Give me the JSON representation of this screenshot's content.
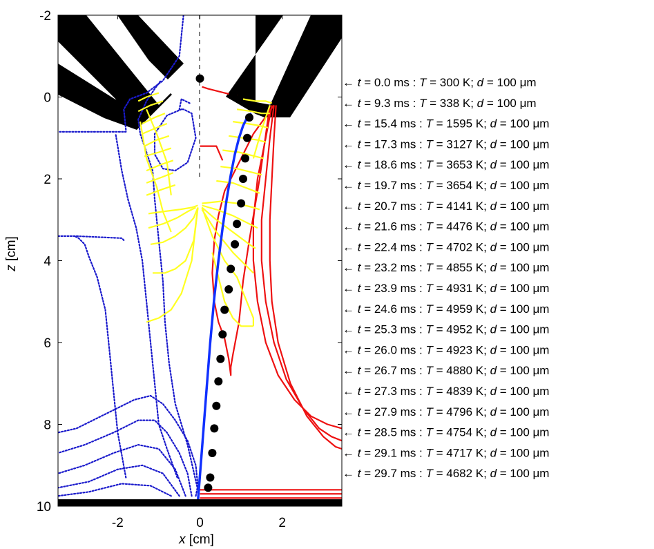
{
  "chart_data": {
    "type": "line",
    "title": "",
    "xlabel": {
      "var": "x",
      "unit": "[cm]"
    },
    "ylabel": {
      "var": "z",
      "unit": "[cm]"
    },
    "xlim": [
      -3.45,
      3.45
    ],
    "ylim": [
      -2,
      10
    ],
    "y_reversed": true,
    "x_ticks": [
      -2,
      0,
      2
    ],
    "y_ticks": [
      -2,
      0,
      2,
      4,
      6,
      8,
      10
    ],
    "grid": false,
    "colors": {
      "blue_contours": "#1a1acc",
      "red_contours": "#ee1111",
      "yellow_contours": "#ffff22",
      "trajectory": "#1030ff",
      "particles": "#000000",
      "electrodes": "#000000"
    },
    "trajectory": {
      "x": [
        -0.05,
        0.05,
        0.15,
        0.25,
        0.35,
        0.45,
        0.55,
        0.65,
        0.75,
        0.85,
        0.95,
        1.05,
        1.15,
        1.25
      ],
      "z": [
        9.9,
        8.6,
        7.3,
        6.0,
        4.9,
        4.0,
        3.2,
        2.5,
        1.9,
        1.4,
        1.0,
        0.7,
        0.5,
        0.4
      ]
    },
    "particles": {
      "x": [
        0.0,
        0.8,
        1.2,
        1.15,
        1.1,
        1.05,
        1.0,
        0.9,
        0.85,
        0.75,
        0.7,
        0.6,
        0.55,
        0.5,
        0.45,
        0.4,
        0.35,
        0.3,
        0.25,
        0.2
      ],
      "z": [
        -0.45,
        -0.05,
        0.5,
        1.0,
        1.5,
        2.0,
        2.6,
        3.1,
        3.6,
        4.2,
        4.7,
        5.2,
        5.8,
        6.4,
        6.95,
        7.55,
        8.1,
        8.7,
        9.3,
        9.55
      ]
    },
    "annotations": [
      {
        "t": "0.0",
        "T": "300",
        "d": "100"
      },
      {
        "t": "9.3",
        "T": "338",
        "d": "100"
      },
      {
        "t": "15.4",
        "T": "1595",
        "d": "100"
      },
      {
        "t": "17.3",
        "T": "3127",
        "d": "100"
      },
      {
        "t": "18.6",
        "T": "3653",
        "d": "100"
      },
      {
        "t": "19.7",
        "T": "3654",
        "d": "100"
      },
      {
        "t": "20.7",
        "T": "4141",
        "d": "100"
      },
      {
        "t": "21.6",
        "T": "4476",
        "d": "100"
      },
      {
        "t": "22.4",
        "T": "4702",
        "d": "100"
      },
      {
        "t": "23.2",
        "T": "4855",
        "d": "100"
      },
      {
        "t": "23.9",
        "T": "4931",
        "d": "100"
      },
      {
        "t": "24.6",
        "T": "4959",
        "d": "100"
      },
      {
        "t": "25.3",
        "T": "4952",
        "d": "100"
      },
      {
        "t": "26.0",
        "T": "4923",
        "d": "100"
      },
      {
        "t": "26.7",
        "T": "4880",
        "d": "100"
      },
      {
        "t": "27.3",
        "T": "4839",
        "d": "100"
      },
      {
        "t": "27.9",
        "T": "4796",
        "d": "100"
      },
      {
        "t": "28.5",
        "T": "4754",
        "d": "100"
      },
      {
        "t": "29.1",
        "T": "4717",
        "d": "100"
      },
      {
        "t": "29.7",
        "T": "4682",
        "d": "100"
      }
    ],
    "blue_contours": [
      {
        "x": [
          -0.1,
          -0.05,
          -0.1,
          -0.3,
          -0.6,
          -0.9,
          -1.2,
          -1.6,
          -2.2,
          -3.0,
          -3.45
        ],
        "z": [
          9.75,
          9.5,
          9.0,
          8.4,
          7.9,
          7.5,
          7.3,
          7.4,
          7.7,
          8.1,
          8.2
        ]
      },
      {
        "x": [
          -0.2,
          -0.3,
          -0.5,
          -0.8,
          -1.1,
          -1.5,
          -2.1,
          -2.8,
          -3.45
        ],
        "z": [
          9.75,
          9.2,
          8.7,
          8.2,
          7.9,
          7.9,
          8.2,
          8.5,
          8.7
        ]
      },
      {
        "x": [
          -0.35,
          -0.6,
          -1.0,
          -1.5,
          -2.1,
          -2.8,
          -3.45
        ],
        "z": [
          9.75,
          9.1,
          8.6,
          8.5,
          8.7,
          9.0,
          9.2
        ]
      },
      {
        "x": [
          -0.5,
          -0.9,
          -1.4,
          -2.0,
          -2.7,
          -3.45
        ],
        "z": [
          9.75,
          9.2,
          9.0,
          9.1,
          9.4,
          9.55
        ]
      },
      {
        "x": [
          -0.7,
          -1.2,
          -1.9,
          -2.7,
          -3.45
        ],
        "z": [
          9.75,
          9.5,
          9.45,
          9.65,
          9.75
        ]
      },
      {
        "x": [
          -0.05,
          -0.3,
          -0.6,
          -0.75,
          -0.85,
          -0.9,
          -1.0,
          -1.1,
          -1.15,
          -1.35,
          -1.45,
          -1.5,
          -1.3,
          -1.1,
          -0.95
        ],
        "z": [
          9.6,
          8.5,
          7.5,
          6.5,
          5.5,
          4.5,
          3.5,
          2.5,
          1.8,
          1.2,
          0.9,
          0.55,
          0.1,
          -0.2,
          -0.4
        ]
      },
      {
        "x": [
          -0.55,
          -0.8,
          -1.0,
          -1.1,
          -1.2,
          -1.3,
          -1.4,
          -1.55,
          -1.75,
          -1.9,
          -2.0,
          -2.05
        ],
        "z": [
          9.3,
          8.6,
          8.0,
          7.0,
          6.0,
          5.0,
          4.0,
          3.2,
          2.5,
          1.8,
          1.2,
          0.9
        ]
      },
      {
        "x": [
          -0.4,
          -0.5,
          -0.9,
          -1.3,
          -1.7,
          -1.85,
          -1.8,
          -1.8,
          -2.1,
          -2.6,
          -3.1,
          -3.45
        ],
        "z": [
          -2.0,
          -1.0,
          -0.4,
          -0.1,
          0.05,
          0.3,
          0.8,
          0.85,
          0.85,
          0.85,
          0.85,
          0.85
        ]
      },
      {
        "x": [
          -1.8,
          -2.0,
          -2.1,
          -2.2,
          -2.3,
          -2.5,
          -2.7,
          -2.8,
          -2.95,
          -3.05
        ],
        "z": [
          9.3,
          8.2,
          7.2,
          6.2,
          5.2,
          4.4,
          3.9,
          3.6,
          3.45,
          3.4
        ]
      },
      {
        "x": [
          -3.45,
          -3.1,
          -3.0,
          -1.9,
          -1.85
        ],
        "z": [
          3.4,
          3.4,
          3.4,
          3.45,
          3.5
        ]
      },
      {
        "x": [
          -0.45,
          -0.8,
          -1.1,
          -1.1,
          -0.9,
          -0.6,
          -0.3,
          -0.1,
          -0.2,
          -0.4,
          -0.45
        ],
        "z": [
          0.3,
          0.45,
          0.9,
          1.4,
          1.75,
          1.8,
          1.6,
          1.0,
          0.4,
          0.3,
          0.3
        ]
      },
      {
        "x": [
          -0.25,
          -0.45,
          -0.5
        ],
        "z": [
          0.15,
          0.05,
          0.3
        ]
      }
    ],
    "red_contours": [
      {
        "x": [
          1.8,
          1.3,
          1.0,
          0.8,
          0.6,
          0.45,
          0.35,
          0.3,
          0.35,
          0.45,
          0.6,
          0.7,
          0.75,
          0.75,
          0.8,
          0.95,
          1.05,
          1.2,
          1.45,
          1.7
        ],
        "z": [
          0.2,
          0.9,
          1.5,
          1.9,
          2.3,
          2.9,
          3.5,
          4.3,
          5.0,
          5.5,
          5.9,
          6.4,
          6.8,
          6.6,
          6.3,
          5.5,
          4.5,
          3.5,
          2.0,
          0.2
        ]
      },
      {
        "x": [
          1.75,
          1.6,
          1.4,
          1.3,
          1.3,
          1.4,
          1.6,
          1.9,
          2.3,
          2.7,
          3.1,
          3.45
        ],
        "z": [
          0.2,
          1.0,
          2.0,
          3.0,
          4.0,
          5.0,
          6.0,
          6.8,
          7.4,
          7.8,
          8.0,
          8.1
        ]
      },
      {
        "x": [
          1.8,
          1.7,
          1.6,
          1.5,
          1.5,
          1.6,
          1.8,
          2.1,
          2.5,
          2.9,
          3.2,
          3.45
        ],
        "z": [
          0.2,
          1.0,
          2.0,
          3.0,
          4.0,
          5.0,
          6.0,
          6.9,
          7.6,
          8.1,
          8.3,
          8.4
        ]
      },
      {
        "x": [
          1.85,
          1.8,
          1.75,
          1.7,
          1.7,
          1.75,
          1.9,
          2.2,
          2.6,
          3.0,
          3.3,
          3.45
        ],
        "z": [
          0.2,
          1.0,
          2.0,
          3.0,
          4.0,
          5.0,
          6.0,
          7.0,
          7.8,
          8.3,
          8.55,
          8.6
        ]
      },
      {
        "x": [
          0.55,
          0.4,
          0.2,
          0.0
        ],
        "z": [
          1.55,
          1.2,
          1.2,
          1.2
        ]
      },
      {
        "x": [
          0.9,
          0.8,
          0.6,
          0.4,
          0.2,
          0.05
        ],
        "z": [
          -0.05,
          -0.05,
          -0.1,
          -0.15,
          -0.2,
          -0.25
        ]
      },
      {
        "x": [
          0.0,
          3.45
        ],
        "z": [
          9.6,
          9.6
        ]
      },
      {
        "x": [
          0.0,
          3.45
        ],
        "z": [
          9.7,
          9.7
        ]
      },
      {
        "x": [
          0.0,
          3.45
        ],
        "z": [
          9.8,
          9.8
        ]
      },
      {
        "x": [
          0.0,
          3.45
        ],
        "z": [
          9.85,
          9.85
        ]
      },
      {
        "x": [
          0.0,
          1.0,
          1.5,
          2.0,
          3.45
        ],
        "z": [
          9.9,
          9.9,
          9.85,
          9.9,
          9.9
        ]
      }
    ],
    "yellow_contours": [
      {
        "x": [
          -1.3,
          -1.0,
          -0.7,
          -0.45,
          -0.2,
          -0.05
        ],
        "z": [
          5.5,
          5.4,
          5.2,
          4.8,
          4.0,
          2.7
        ]
      },
      {
        "x": [
          -1.15,
          -0.85,
          -0.6,
          -0.35,
          -0.15,
          -0.05
        ],
        "z": [
          4.3,
          4.3,
          4.2,
          4.0,
          3.5,
          2.7
        ]
      },
      {
        "x": [
          -1.2,
          -0.9,
          -0.6,
          -0.35,
          -0.15,
          -0.05
        ],
        "z": [
          3.6,
          3.55,
          3.4,
          3.2,
          2.95,
          2.7
        ]
      },
      {
        "x": [
          -1.25,
          -0.9,
          -0.55,
          -0.3,
          -0.1
        ],
        "z": [
          3.2,
          3.1,
          2.95,
          2.8,
          2.7
        ]
      },
      {
        "x": [
          -1.25,
          -0.9,
          -0.5,
          -0.2,
          -0.05
        ],
        "z": [
          2.85,
          2.8,
          2.75,
          2.7,
          2.65
        ]
      },
      {
        "x": [
          -1.3,
          -0.9,
          -0.6
        ],
        "z": [
          2.4,
          2.25,
          2.15
        ]
      },
      {
        "x": [
          -1.3,
          -0.9,
          -0.65
        ],
        "z": [
          2.1,
          1.95,
          1.85
        ]
      },
      {
        "x": [
          -1.3,
          -0.95,
          -0.65
        ],
        "z": [
          1.8,
          1.65,
          1.55
        ]
      },
      {
        "x": [
          -1.35,
          -1.0,
          -0.7
        ],
        "z": [
          1.45,
          1.35,
          1.25
        ]
      },
      {
        "x": [
          -1.35,
          -1.05,
          -0.75
        ],
        "z": [
          1.2,
          1.05,
          0.95
        ]
      },
      {
        "x": [
          -1.4,
          -1.05,
          -0.8
        ],
        "z": [
          0.9,
          0.75,
          0.65
        ]
      },
      {
        "x": [
          -1.4,
          -1.1,
          -0.85
        ],
        "z": [
          0.65,
          0.5,
          0.4
        ]
      },
      {
        "x": [
          -1.5,
          -1.2,
          -0.9
        ],
        "z": [
          0.35,
          0.2,
          0.1
        ]
      },
      {
        "x": [
          -1.5,
          -1.3,
          -1.0
        ],
        "z": [
          0.1,
          0.0,
          -0.1
        ]
      },
      {
        "x": [
          -1.3,
          -1.05,
          -0.8,
          -0.7
        ],
        "z": [
          0.3,
          0.9,
          1.6,
          2.4
        ]
      },
      {
        "x": [
          -1.45,
          -1.3,
          -1.05,
          -0.9,
          -0.7
        ],
        "z": [
          0.6,
          1.5,
          2.2,
          2.8,
          3.3
        ]
      },
      {
        "x": [
          0.05,
          0.3,
          0.6,
          0.9,
          1.1,
          1.3,
          1.3
        ],
        "z": [
          2.7,
          3.4,
          4.0,
          4.4,
          4.9,
          5.4,
          5.6
        ]
      },
      {
        "x": [
          1.3,
          1.0,
          0.8,
          0.6,
          0.45,
          0.3
        ],
        "z": [
          5.6,
          5.6,
          5.4,
          5.0,
          4.4,
          3.8
        ]
      },
      {
        "x": [
          0.05,
          0.4,
          0.8,
          1.2,
          1.3
        ],
        "z": [
          2.75,
          3.3,
          3.8,
          4.2,
          4.3
        ]
      },
      {
        "x": [
          0.05,
          0.4,
          0.8,
          1.2,
          1.35
        ],
        "z": [
          2.7,
          3.0,
          3.3,
          3.6,
          3.7
        ]
      },
      {
        "x": [
          0.05,
          0.4,
          0.8,
          1.2,
          1.4
        ],
        "z": [
          2.65,
          2.75,
          2.9,
          3.1,
          3.2
        ]
      },
      {
        "x": [
          0.05,
          0.5,
          0.9,
          1.3,
          1.45
        ],
        "z": [
          2.6,
          2.55,
          2.6,
          2.7,
          2.75
        ]
      },
      {
        "x": [
          0.4,
          0.8,
          1.2,
          1.45
        ],
        "z": [
          2.05,
          2.1,
          2.25,
          2.35
        ]
      },
      {
        "x": [
          0.5,
          0.9,
          1.3,
          1.5
        ],
        "z": [
          1.7,
          1.75,
          1.85,
          1.9
        ]
      },
      {
        "x": [
          0.55,
          0.95,
          1.35,
          1.55
        ],
        "z": [
          1.3,
          1.35,
          1.45,
          1.5
        ]
      },
      {
        "x": [
          0.7,
          1.05,
          1.4,
          1.6
        ],
        "z": [
          0.95,
          1.0,
          1.05,
          1.1
        ]
      },
      {
        "x": [
          0.8,
          1.15,
          1.45,
          1.65
        ],
        "z": [
          0.6,
          0.65,
          0.7,
          0.75
        ]
      },
      {
        "x": [
          0.9,
          1.25,
          1.5,
          1.7
        ],
        "z": [
          0.3,
          0.35,
          0.4,
          0.4
        ]
      },
      {
        "x": [
          1.05,
          1.35,
          1.6,
          1.75
        ],
        "z": [
          0.05,
          0.1,
          0.1,
          0.15
        ]
      },
      {
        "x": [
          1.3,
          1.5,
          1.7
        ],
        "z": [
          1.5,
          0.8,
          0.2
        ]
      }
    ]
  }
}
